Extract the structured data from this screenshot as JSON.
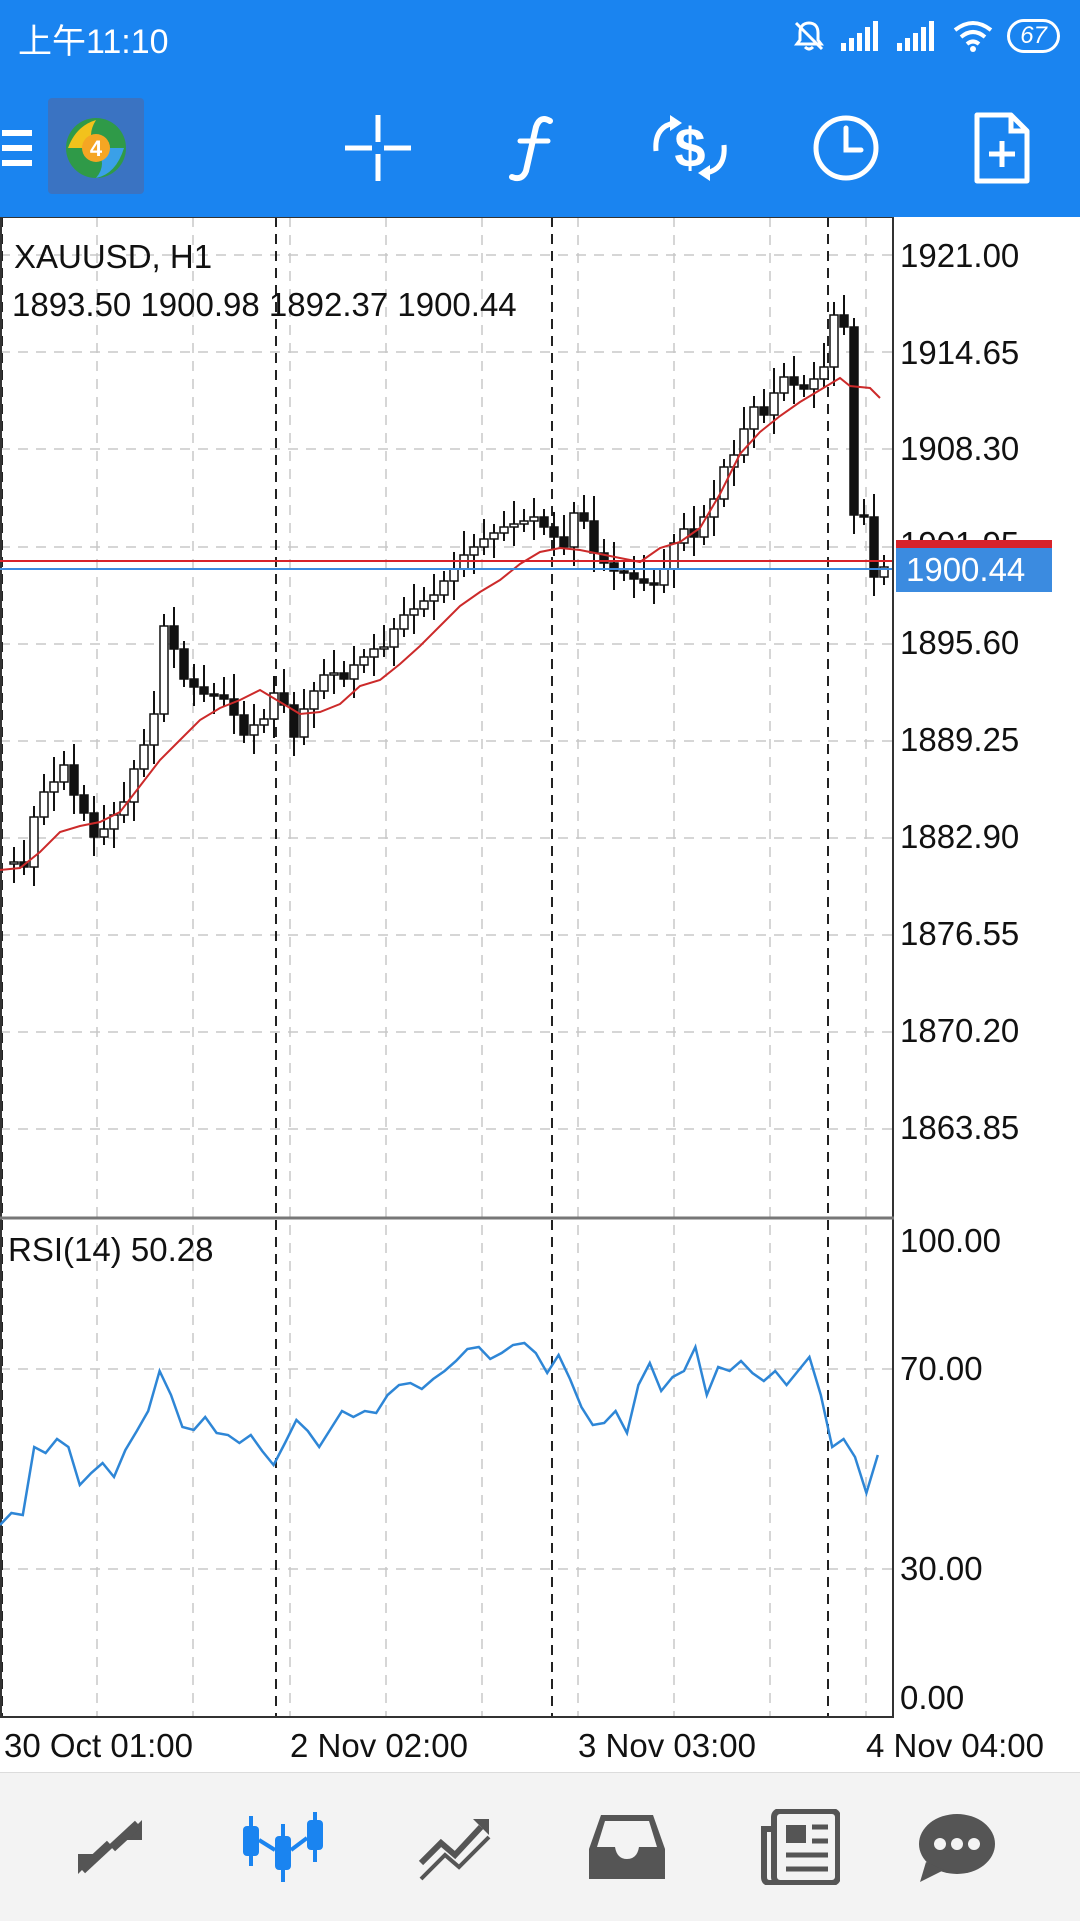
{
  "status_bar": {
    "time": "上午11:10",
    "battery": "67",
    "icons": [
      "mute-icon",
      "signal-icon",
      "signal-icon",
      "wifi-icon",
      "battery-icon"
    ]
  },
  "toolbar": {
    "menu_icon": "hamburger-icon",
    "app_logo": "metatrader-4-logo",
    "buttons": [
      "crosshair-icon",
      "indicators-icon",
      "trade-icon",
      "timeframe-icon",
      "new-order-icon"
    ],
    "logo_text": "4",
    "accent_color": "#1a84f0"
  },
  "chart": {
    "symbol": "XAUUSD, H1",
    "ohlc": "1893.50 1900.98 1892.37 1900.44",
    "current_price": "1900.44",
    "hidden_price_label": "1901.95",
    "price_labels": [
      "1921.00",
      "1914.65",
      "1908.30",
      "1895.60",
      "1889.25",
      "1882.90",
      "1876.55",
      "1870.20",
      "1863.85"
    ],
    "ma_color": "#cc2a2a",
    "bid_line_color": "#d8222a",
    "ask_line_color": "#3b8be0"
  },
  "rsi": {
    "title": "RSI(14) 50.28",
    "levels": [
      "100.00",
      "70.00",
      "30.00",
      "0.00"
    ],
    "line_color": "#2e86d6"
  },
  "time_axis": [
    "30 Oct 01:00",
    "2 Nov 02:00",
    "3 Nov 03:00",
    "4 Nov 04:00"
  ],
  "bottom_nav": {
    "items": [
      "quotes-icon",
      "chart-icon",
      "trade-icon",
      "history-icon",
      "news-icon",
      "messages-icon"
    ],
    "active": "chart-icon",
    "active_color": "#1a84f0",
    "inactive_color": "#555555"
  }
}
